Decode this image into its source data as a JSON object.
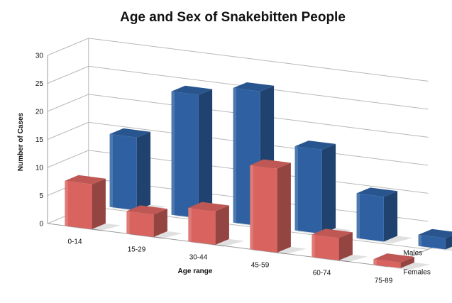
{
  "chart_data": {
    "type": "bar",
    "variant": "3d-clustered-depth",
    "title": "Age and Sex of Snakebitten People",
    "xlabel": "Age range",
    "ylabel": "Number of Cases",
    "ylim": [
      0,
      30
    ],
    "yticks": [
      0,
      5,
      10,
      15,
      20,
      25,
      30
    ],
    "grid": true,
    "categories": [
      "0-14",
      "15-29",
      "30-44",
      "45-59",
      "60-74",
      "75-89"
    ],
    "series": [
      {
        "name": "Females",
        "values": [
          8,
          4,
          6,
          15,
          4,
          1
        ],
        "color": "#d9645f"
      },
      {
        "name": "Males",
        "values": [
          13,
          22,
          24,
          15,
          8,
          2
        ],
        "color": "#2f61a2"
      }
    ]
  }
}
